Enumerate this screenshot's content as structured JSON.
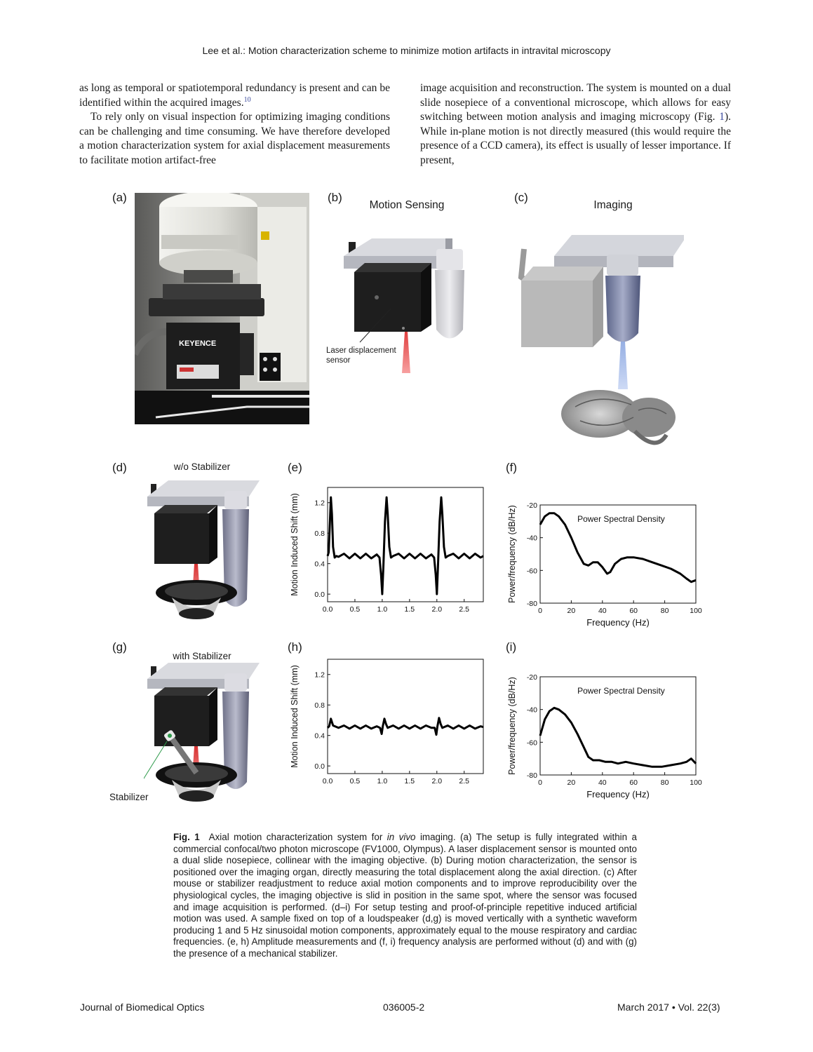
{
  "header": {
    "running_title": "Lee et al.: Motion characterization scheme to minimize motion artifacts in intravital microscopy"
  },
  "body_text": {
    "left_p1_a": "as long as temporal or spatiotemporal redundancy is present and can be identified within the acquired images.",
    "left_p1_ref": "10",
    "left_p2": "To rely only on visual inspection for optimizing imaging conditions can be challenging and time consuming. We have therefore developed a motion characterization system for axial displacement measurements to facilitate motion artifact-free",
    "right_p1_a": "image acquisition and reconstruction. The system is mounted on a dual slide nosepiece of a conventional microscope, which allows for easy switching between motion analysis and imaging microscopy (Fig. ",
    "right_p1_figref": "1",
    "right_p1_b": "). While in-plane motion is not directly measured (this would require the presence of a CCD camera), its effect is usually of lesser importance. If present,"
  },
  "figure": {
    "labels": {
      "a": "(a)",
      "b": "(b)",
      "c": "(c)",
      "d": "(d)",
      "e": "(e)",
      "f": "(f)",
      "g": "(g)",
      "h": "(h)",
      "i": "(i)"
    },
    "titles": {
      "b": "Motion Sensing",
      "c": "Imaging",
      "d": "w/o Stabilizer",
      "g": "with Stabilizer"
    },
    "annotations": {
      "sensor_line1": "Laser displacement",
      "sensor_line2": "sensor",
      "stabilizer": "Stabilizer"
    },
    "photo_text": {
      "brand": "KEYENCE"
    }
  },
  "chart_data": [
    {
      "panel": "(e)",
      "type": "line",
      "xlabel": "",
      "ylabel": "Motion Induced Shift (mm)",
      "xlim": [
        0,
        2.85
      ],
      "ylim": [
        -0.1,
        1.4
      ],
      "xticks": [
        0.0,
        0.5,
        1.0,
        1.5,
        2.0,
        2.5
      ],
      "xtick_labels": [
        "0.0",
        "0.5",
        "1.0",
        "1.5",
        "2.0",
        "2.5"
      ],
      "yticks": [
        0.0,
        0.4,
        0.8,
        1.2
      ],
      "ytick_labels": [
        "0.0",
        "0.4",
        "0.8",
        "1.2"
      ],
      "x": [
        0.0,
        0.02,
        0.04,
        0.06,
        0.08,
        0.1,
        0.13,
        0.16,
        0.2,
        0.3,
        0.4,
        0.5,
        0.6,
        0.7,
        0.8,
        0.9,
        0.95,
        0.98,
        1.0,
        1.02,
        1.05,
        1.08,
        1.1,
        1.13,
        1.16,
        1.2,
        1.3,
        1.4,
        1.5,
        1.6,
        1.7,
        1.8,
        1.9,
        1.95,
        1.98,
        2.0,
        2.02,
        2.05,
        2.08,
        2.1,
        2.13,
        2.16,
        2.2,
        2.3,
        2.4,
        2.5,
        2.6,
        2.7,
        2.8,
        2.85
      ],
      "y": [
        0.5,
        0.55,
        0.9,
        1.27,
        1.05,
        0.62,
        0.48,
        0.5,
        0.49,
        0.53,
        0.47,
        0.53,
        0.47,
        0.53,
        0.47,
        0.52,
        0.48,
        0.25,
        0.0,
        0.35,
        0.95,
        1.27,
        1.05,
        0.62,
        0.48,
        0.5,
        0.53,
        0.47,
        0.53,
        0.47,
        0.53,
        0.47,
        0.52,
        0.48,
        0.25,
        0.0,
        0.35,
        0.95,
        1.27,
        1.05,
        0.62,
        0.48,
        0.5,
        0.53,
        0.47,
        0.53,
        0.47,
        0.53,
        0.48,
        0.5
      ]
    },
    {
      "panel": "(f)",
      "type": "line",
      "title": "Power Spectral Density",
      "xlabel": "Frequency (Hz)",
      "ylabel": "Power/frequency (dB/Hz)",
      "xlim": [
        0,
        100
      ],
      "ylim": [
        -80,
        -20
      ],
      "xticks": [
        0,
        20,
        40,
        60,
        80,
        100
      ],
      "xtick_labels": [
        "0",
        "20",
        "40",
        "60",
        "80",
        "100"
      ],
      "yticks": [
        -80,
        -60,
        -40,
        -20
      ],
      "ytick_labels": [
        "-80",
        "-60",
        "-40",
        "-20"
      ],
      "x": [
        0,
        3,
        6,
        9,
        12,
        16,
        20,
        24,
        28,
        31,
        34,
        37,
        40,
        43,
        45,
        48,
        52,
        56,
        60,
        66,
        72,
        78,
        84,
        90,
        94,
        97,
        100
      ],
      "y": [
        -32,
        -27,
        -25,
        -25,
        -27,
        -32,
        -40,
        -49,
        -56,
        -57,
        -55,
        -55,
        -58,
        -62,
        -61,
        -56,
        -53,
        -52,
        -52,
        -53,
        -55,
        -57,
        -59,
        -62,
        -65,
        -67,
        -66
      ]
    },
    {
      "panel": "(h)",
      "type": "line",
      "xlabel": "",
      "ylabel": "Motion Induced Shift (mm)",
      "xlim": [
        0,
        2.85
      ],
      "ylim": [
        -0.1,
        1.4
      ],
      "xticks": [
        0.0,
        0.5,
        1.0,
        1.5,
        2.0,
        2.5
      ],
      "xtick_labels": [
        "0.0",
        "0.5",
        "1.0",
        "1.5",
        "2.0",
        "2.5"
      ],
      "yticks": [
        0.0,
        0.4,
        0.8,
        1.2
      ],
      "ytick_labels": [
        "0.0",
        "0.4",
        "0.8",
        "1.2"
      ],
      "x": [
        0.0,
        0.03,
        0.06,
        0.1,
        0.2,
        0.3,
        0.4,
        0.5,
        0.6,
        0.7,
        0.8,
        0.9,
        0.96,
        0.99,
        1.01,
        1.04,
        1.07,
        1.1,
        1.2,
        1.3,
        1.4,
        1.5,
        1.6,
        1.7,
        1.8,
        1.9,
        1.96,
        1.99,
        2.01,
        2.04,
        2.07,
        2.1,
        2.2,
        2.3,
        2.4,
        2.5,
        2.6,
        2.7,
        2.8,
        2.85
      ],
      "y": [
        0.5,
        0.52,
        0.62,
        0.53,
        0.5,
        0.53,
        0.49,
        0.53,
        0.49,
        0.53,
        0.49,
        0.52,
        0.5,
        0.42,
        0.52,
        0.62,
        0.55,
        0.5,
        0.53,
        0.49,
        0.53,
        0.49,
        0.53,
        0.49,
        0.53,
        0.5,
        0.5,
        0.41,
        0.52,
        0.63,
        0.55,
        0.5,
        0.53,
        0.49,
        0.53,
        0.49,
        0.53,
        0.49,
        0.52,
        0.51
      ]
    },
    {
      "panel": "(i)",
      "type": "line",
      "title": "Power Spectral Density",
      "xlabel": "Frequency (Hz)",
      "ylabel": "Power/frequency (dB/Hz)",
      "xlim": [
        0,
        100
      ],
      "ylim": [
        -80,
        -20
      ],
      "xticks": [
        0,
        20,
        40,
        60,
        80,
        100
      ],
      "xtick_labels": [
        "0",
        "20",
        "40",
        "60",
        "80",
        "100"
      ],
      "yticks": [
        -80,
        -60,
        -40,
        -20
      ],
      "ytick_labels": [
        "-80",
        "-60",
        "-40",
        "-20"
      ],
      "x": [
        0,
        3,
        6,
        9,
        12,
        16,
        20,
        24,
        28,
        31,
        34,
        38,
        42,
        46,
        50,
        55,
        60,
        66,
        72,
        78,
        84,
        90,
        94,
        97,
        100
      ],
      "y": [
        -56,
        -46,
        -41,
        -39,
        -40,
        -43,
        -48,
        -55,
        -63,
        -69,
        -71,
        -71,
        -72,
        -72,
        -73,
        -72,
        -73,
        -74,
        -75,
        -75,
        -74,
        -73,
        -72,
        -70,
        -73
      ]
    }
  ],
  "caption": {
    "label": "Fig. 1",
    "text_a": "Axial motion characterization system for ",
    "italic": "in vivo",
    "text_b": " imaging. (a) The setup is fully integrated within a commercial confocal/two photon microscope (FV1000, Olympus). A laser displacement sensor is mounted onto a dual slide nosepiece, collinear with the imaging objective. (b) During motion characterization, the sensor is positioned over the imaging organ, directly measuring the total displacement along the axial direction. (c) After mouse or stabilizer readjustment to reduce axial motion components and to improve reproducibility over the physiological cycles, the imaging objective is slid in position in the same spot, where the sensor was focused and image acquisition is performed. (d–i) For setup testing and proof-of-principle repetitive induced artificial motion was used. A sample fixed on top of a loudspeaker (d,g) is moved vertically with a synthetic waveform producing 1 and 5 Hz sinusoidal motion components, approximately equal to the mouse respiratory and cardiac frequencies. (e, h) Amplitude measurements and (f, i) frequency analysis are performed without (d) and with (g) the presence of a mechanical stabilizer."
  },
  "footer": {
    "journal": "Journal of Biomedical Optics",
    "article_id": "036005-2",
    "issue": "March 2017 • Vol. 22(3)"
  }
}
